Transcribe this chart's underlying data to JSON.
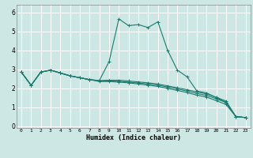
{
  "xlabel": "Humidex (Indice chaleur)",
  "bg_color": "#cde8e4",
  "grid_color": "#ffffff",
  "line_color": "#1a7a6e",
  "x_ticks": [
    0,
    1,
    2,
    3,
    4,
    5,
    6,
    7,
    8,
    9,
    10,
    11,
    12,
    13,
    14,
    15,
    16,
    17,
    18,
    19,
    20,
    21,
    22,
    23
  ],
  "y_ticks": [
    0,
    1,
    2,
    3,
    4,
    5,
    6
  ],
  "ylim": [
    -0.1,
    6.4
  ],
  "xlim": [
    -0.5,
    23.5
  ],
  "curves": [
    {
      "x": [
        0,
        1,
        2,
        3,
        4,
        5,
        6,
        7,
        8,
        9,
        10,
        11,
        12,
        13,
        14,
        15,
        16,
        17,
        18,
        19,
        20,
        21,
        22,
        23
      ],
      "y": [
        2.85,
        2.15,
        2.85,
        2.95,
        2.8,
        2.65,
        2.55,
        2.45,
        2.4,
        3.4,
        5.65,
        5.3,
        5.35,
        5.2,
        5.5,
        4.0,
        2.95,
        2.6,
        1.85,
        1.75,
        1.5,
        1.25,
        0.5,
        0.45
      ]
    },
    {
      "x": [
        0,
        1,
        2,
        3,
        4,
        5,
        6,
        7,
        8,
        9,
        10,
        11,
        12,
        13,
        14,
        15,
        16,
        17,
        18,
        19,
        20,
        21,
        22,
        23
      ],
      "y": [
        2.85,
        2.15,
        2.85,
        2.95,
        2.8,
        2.65,
        2.55,
        2.45,
        2.4,
        2.42,
        2.42,
        2.38,
        2.33,
        2.28,
        2.22,
        2.12,
        2.02,
        1.92,
        1.8,
        1.7,
        1.52,
        1.32,
        0.5,
        0.45
      ]
    },
    {
      "x": [
        0,
        1,
        2,
        3,
        4,
        5,
        6,
        7,
        8,
        9,
        10,
        11,
        12,
        13,
        14,
        15,
        16,
        17,
        18,
        19,
        20,
        21,
        22,
        23
      ],
      "y": [
        2.85,
        2.15,
        2.85,
        2.95,
        2.8,
        2.65,
        2.55,
        2.45,
        2.38,
        2.38,
        2.36,
        2.32,
        2.27,
        2.22,
        2.16,
        2.06,
        1.96,
        1.85,
        1.72,
        1.62,
        1.44,
        1.24,
        0.5,
        0.45
      ]
    },
    {
      "x": [
        0,
        1,
        2,
        3,
        4,
        5,
        6,
        7,
        8,
        9,
        10,
        11,
        12,
        13,
        14,
        15,
        16,
        17,
        18,
        19,
        20,
        21,
        22,
        23
      ],
      "y": [
        2.85,
        2.15,
        2.85,
        2.95,
        2.8,
        2.65,
        2.55,
        2.45,
        2.35,
        2.35,
        2.32,
        2.28,
        2.22,
        2.16,
        2.09,
        1.99,
        1.88,
        1.77,
        1.63,
        1.53,
        1.34,
        1.14,
        0.5,
        0.45
      ]
    }
  ]
}
